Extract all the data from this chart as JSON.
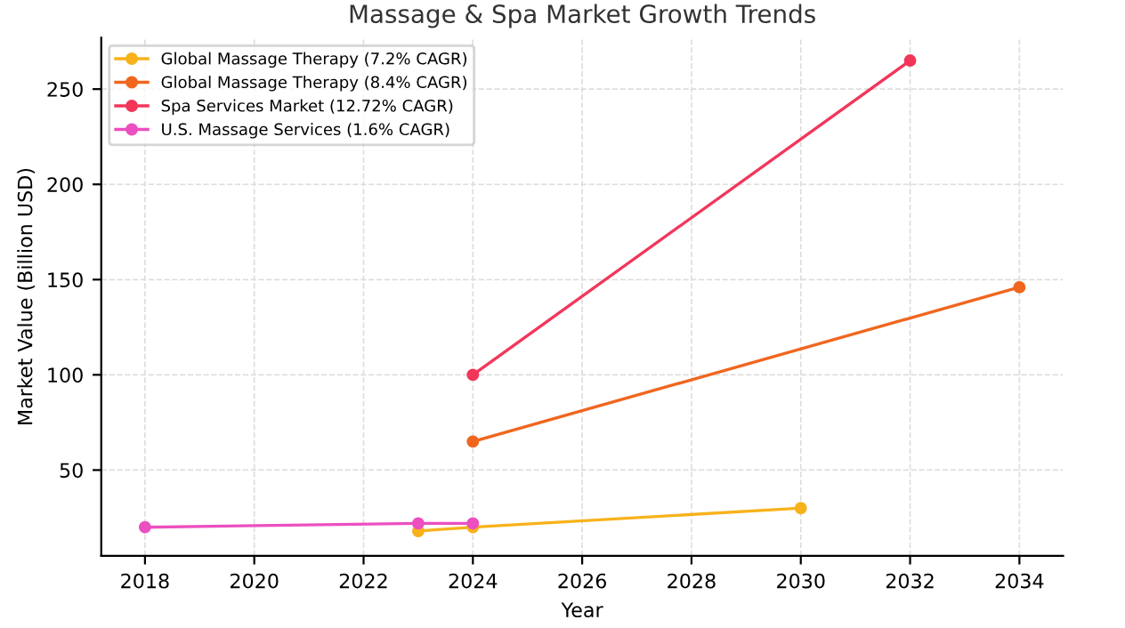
{
  "chart_data": {
    "type": "line",
    "title": "Massage & Spa Market Growth Trends",
    "xlabel": "Year",
    "ylabel": "Market Value (Billion USD)",
    "xlim": [
      2017.2,
      2034.8
    ],
    "xticks": [
      2018,
      2020,
      2022,
      2024,
      2026,
      2028,
      2030,
      2032,
      2034
    ],
    "ylim": [
      5,
      277
    ],
    "yticks": [
      50,
      100,
      150,
      200,
      250
    ],
    "grid": true,
    "legend": "top left",
    "marker": "circle",
    "line_style": "solid",
    "series": [
      {
        "name": "Global Massage Therapy (7.2% CAGR)",
        "color": "#f7b21b",
        "x": [
          2023,
          2024,
          2030
        ],
        "values": [
          18,
          20,
          30
        ]
      },
      {
        "name": "Global Massage Therapy (8.4% CAGR)",
        "color": "#f0661e",
        "x": [
          2024,
          2034
        ],
        "values": [
          65,
          146
        ]
      },
      {
        "name": "Spa Services Market (12.72% CAGR)",
        "color": "#f2365a",
        "x": [
          2024,
          2032
        ],
        "values": [
          100,
          265
        ]
      },
      {
        "name": "U.S. Massage Services (1.6% CAGR)",
        "color": "#ec4fc0",
        "x": [
          2018,
          2023,
          2024
        ],
        "values": [
          20,
          22,
          22
        ]
      }
    ]
  }
}
